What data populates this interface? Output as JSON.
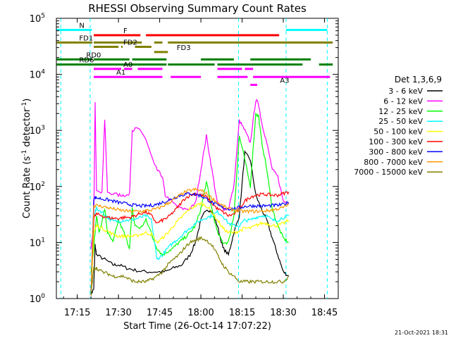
{
  "chart_data": {
    "type": "line",
    "title": "RHESSI Observing Summary Count Rates",
    "xlabel": "Start Time (26-Oct-14 17:07:22)",
    "ylabel_main": "Count Rate (s",
    "ylabel_sup": "-1",
    "ylabel_rest": " detector",
    "ylabel_sup2": "-1",
    "ylabel_end": ")",
    "x_unit": "minutes",
    "xlim": [
      1027.4,
      1130
    ],
    "ylim": [
      1,
      100000
    ],
    "yscale": "log",
    "x_ticks": [
      {
        "v": 1035,
        "label": "17:15"
      },
      {
        "v": 1050,
        "label": "17:30"
      },
      {
        "v": 1065,
        "label": "17:45"
      },
      {
        "v": 1080,
        "label": "18:00"
      },
      {
        "v": 1095,
        "label": "18:15"
      },
      {
        "v": 1110,
        "label": "18:30"
      },
      {
        "v": 1125,
        "label": "18:45"
      }
    ],
    "y_ticks": [
      {
        "v": 1,
        "base": "10",
        "exp": "0"
      },
      {
        "v": 10,
        "base": "10",
        "exp": "1"
      },
      {
        "v": 100,
        "base": "10",
        "exp": "2"
      },
      {
        "v": 1000,
        "base": "10",
        "exp": "3"
      },
      {
        "v": 10000,
        "base": "10",
        "exp": "4"
      },
      {
        "v": 100000,
        "base": "10",
        "exp": "5"
      }
    ],
    "legend_title": "Det 1,3,6,9",
    "series": [
      {
        "name": "3 - 6 keV",
        "color": "#000000",
        "x": [
          1040,
          1041,
          1041.5,
          1042,
          1045,
          1048,
          1050,
          1053,
          1056,
          1060,
          1064,
          1067,
          1070,
          1073,
          1076,
          1078,
          1080,
          1082,
          1084,
          1086,
          1088,
          1090,
          1092,
          1094,
          1096,
          1098,
          1100,
          1102,
          1104,
          1106,
          1108,
          1110,
          1112
        ],
        "y": [
          1.2,
          1.5,
          9,
          6,
          5,
          4,
          4,
          3.5,
          3.2,
          3,
          3,
          3,
          3.5,
          4,
          6,
          10,
          25,
          40,
          35,
          20,
          8,
          6,
          15,
          30,
          400,
          300,
          70,
          40,
          25,
          12,
          6,
          3,
          2.5
        ]
      },
      {
        "name": "6 - 12 keV",
        "color": "#ff00ff",
        "x": [
          1040,
          1041,
          1041.5,
          1042,
          1044,
          1045,
          1046,
          1050,
          1052,
          1054,
          1055,
          1057,
          1060,
          1063,
          1064,
          1066,
          1067,
          1070,
          1073,
          1076,
          1078,
          1080,
          1082,
          1084,
          1086,
          1088,
          1090,
          1092,
          1094,
          1096,
          1098,
          1100,
          1101,
          1102,
          1104,
          1106,
          1108,
          1110,
          1112
        ],
        "y": [
          8,
          20,
          3000,
          90,
          80,
          1600,
          80,
          70,
          70,
          70,
          1000,
          1100,
          700,
          250,
          200,
          150,
          70,
          50,
          40,
          40,
          50,
          200,
          800,
          200,
          50,
          40,
          40,
          100,
          1500,
          1000,
          600,
          3500,
          3000,
          1500,
          600,
          200,
          150,
          55,
          50
        ]
      },
      {
        "name": "12 - 25 keV",
        "color": "#00ff00",
        "x": [
          1040,
          1041,
          1042,
          1043,
          1045,
          1046,
          1048,
          1050,
          1052,
          1054,
          1055,
          1056,
          1058,
          1060,
          1062,
          1063,
          1064,
          1066,
          1068,
          1070,
          1072,
          1074,
          1076,
          1078,
          1080,
          1082,
          1084,
          1086,
          1088,
          1090,
          1092,
          1094,
          1096,
          1098,
          1100,
          1101,
          1102,
          1104,
          1106,
          1108,
          1110,
          1112
        ],
        "y": [
          3,
          8,
          30,
          15,
          40,
          15,
          10,
          25,
          15,
          8,
          40,
          20,
          18,
          25,
          15,
          10,
          8,
          6,
          7,
          8,
          10,
          12,
          15,
          20,
          40,
          120,
          40,
          15,
          10,
          10,
          30,
          800,
          300,
          100,
          2000,
          1800,
          700,
          200,
          40,
          20,
          12,
          10
        ]
      },
      {
        "name": "25 - 50 keV",
        "color": "#00ffff",
        "x": [
          1040,
          1041,
          1042,
          1044,
          1046,
          1048,
          1050,
          1052,
          1054,
          1056,
          1058,
          1060,
          1062,
          1064,
          1066,
          1068,
          1070,
          1072,
          1074,
          1076,
          1078,
          1080,
          1082,
          1084,
          1086,
          1088,
          1090,
          1092,
          1094,
          1096,
          1098,
          1100,
          1102,
          1104,
          1106,
          1108,
          1110,
          1112
        ],
        "y": [
          1.2,
          30,
          40,
          35,
          28,
          24,
          24,
          25,
          25,
          26,
          28,
          30,
          25,
          5,
          6,
          8,
          10,
          12,
          15,
          18,
          22,
          25,
          28,
          30,
          35,
          30,
          22,
          20,
          20,
          25,
          25,
          28,
          30,
          30,
          25,
          25,
          28,
          30
        ]
      },
      {
        "name": "50 - 100 keV",
        "color": "#ffff00",
        "x": [
          1040,
          1041,
          1042,
          1044,
          1046,
          1048,
          1050,
          1052,
          1054,
          1056,
          1058,
          1060,
          1062,
          1064,
          1066,
          1068,
          1070,
          1072,
          1074,
          1076,
          1078,
          1080,
          1082,
          1084,
          1086,
          1088,
          1090,
          1092,
          1094,
          1096,
          1098,
          1100,
          1102,
          1104,
          1106,
          1108,
          1110,
          1112
        ],
        "y": [
          1.2,
          15,
          20,
          18,
          16,
          14,
          13,
          13,
          13,
          13,
          14,
          15,
          14,
          10,
          12,
          15,
          20,
          25,
          32,
          40,
          45,
          50,
          45,
          35,
          25,
          18,
          15,
          15,
          16,
          18,
          18,
          20,
          22,
          22,
          20,
          20,
          22,
          25
        ]
      },
      {
        "name": "100 - 300 keV",
        "color": "#ff0000",
        "x": [
          1040,
          1041,
          1042,
          1044,
          1046,
          1048,
          1050,
          1052,
          1054,
          1056,
          1058,
          1060,
          1062,
          1064,
          1066,
          1068,
          1070,
          1072,
          1074,
          1076,
          1078,
          1080,
          1082,
          1084,
          1086,
          1088,
          1090,
          1092,
          1094,
          1096,
          1098,
          1100,
          1102,
          1104,
          1106,
          1108,
          1110,
          1112
        ],
        "y": [
          1.2,
          28,
          32,
          30,
          28,
          27,
          27,
          28,
          28,
          30,
          33,
          35,
          30,
          22,
          25,
          28,
          35,
          45,
          60,
          70,
          75,
          70,
          65,
          50,
          40,
          35,
          30,
          32,
          40,
          55,
          65,
          70,
          72,
          72,
          70,
          70,
          75,
          80
        ]
      },
      {
        "name": "300 - 800 keV",
        "color": "#0000ff",
        "x": [
          1040,
          1041,
          1042,
          1044,
          1046,
          1048,
          1050,
          1052,
          1054,
          1056,
          1058,
          1060,
          1062,
          1064,
          1066,
          1068,
          1070,
          1072,
          1074,
          1076,
          1078,
          1080,
          1082,
          1084,
          1086,
          1088,
          1090,
          1092,
          1094,
          1096,
          1098,
          1100,
          1102,
          1104,
          1106,
          1108,
          1110,
          1112
        ],
        "y": [
          1.2,
          62,
          63,
          60,
          58,
          55,
          52,
          50,
          48,
          46,
          45,
          45,
          46,
          48,
          52,
          56,
          62,
          68,
          72,
          75,
          72,
          68,
          60,
          52,
          46,
          42,
          40,
          40,
          42,
          44,
          45,
          45,
          45,
          45,
          46,
          46,
          48,
          52
        ]
      },
      {
        "name": "800 - 7000 keV",
        "color": "#ff9900",
        "x": [
          1040,
          1041,
          1042,
          1044,
          1046,
          1048,
          1050,
          1052,
          1054,
          1056,
          1058,
          1060,
          1062,
          1064,
          1066,
          1068,
          1070,
          1072,
          1074,
          1076,
          1078,
          1080,
          1082,
          1084,
          1086,
          1088,
          1090,
          1092,
          1094,
          1096,
          1098,
          1100,
          1102,
          1104,
          1106,
          1108,
          1110,
          1112
        ],
        "y": [
          1.2,
          45,
          46,
          44,
          42,
          40,
          38,
          37,
          36,
          36,
          36,
          37,
          38,
          40,
          44,
          50,
          58,
          68,
          78,
          85,
          88,
          85,
          75,
          62,
          52,
          45,
          40,
          38,
          36,
          36,
          36,
          36,
          36,
          37,
          38,
          40,
          42,
          48
        ]
      },
      {
        "name": "7000 - 15000 keV",
        "color": "#808000",
        "x": [
          1040,
          1041,
          1042,
          1044,
          1046,
          1048,
          1050,
          1052,
          1054,
          1056,
          1058,
          1060,
          1062,
          1064,
          1066,
          1068,
          1070,
          1072,
          1074,
          1076,
          1078,
          1080,
          1082,
          1084,
          1086,
          1088,
          1090,
          1092,
          1094,
          1096,
          1098,
          1100,
          1102,
          1104,
          1106,
          1108,
          1110,
          1112
        ],
        "y": [
          1.2,
          3.5,
          3.5,
          3,
          2.8,
          2.5,
          2.5,
          2.5,
          2.2,
          2,
          2,
          2,
          2.2,
          2.5,
          3,
          4,
          5,
          6,
          8,
          10,
          11,
          12,
          11,
          9,
          6,
          4,
          3,
          2.5,
          2,
          2,
          2,
          2,
          2,
          2,
          2,
          2,
          2,
          2.5
        ]
      }
    ],
    "bars": [
      {
        "label": "N",
        "color": "#00ffff",
        "y": 62000,
        "segments": [
          [
            1027.5,
            1040.3
          ],
          [
            1111,
            1126
          ]
        ]
      },
      {
        "label": "F",
        "color": "#ff0000",
        "y": 50000,
        "segments": [
          [
            1041,
            1058
          ],
          [
            1060,
            1108.5
          ]
        ]
      },
      {
        "label": "FD1",
        "color": "#808000",
        "y": 37000,
        "segments": [
          [
            1027.5,
            1040.5
          ],
          [
            1041,
            1058.5
          ],
          [
            1063,
            1066
          ],
          [
            1068,
            1128
          ]
        ]
      },
      {
        "label": "FD2",
        "color": "#808000",
        "y": 31000,
        "segments": [
          [
            1041,
            1050
          ],
          [
            1051,
            1051.5
          ],
          [
            1056,
            1062
          ]
        ]
      },
      {
        "label": "FD3",
        "color": "#808000",
        "y": 25000,
        "segments": [
          [
            1063,
            1068
          ]
        ]
      },
      {
        "label": "RD0",
        "color": "#008000",
        "y": 18500,
        "segments": [
          [
            1027.5,
            1040.5
          ],
          [
            1041,
            1054
          ],
          [
            1055,
            1067.5
          ],
          [
            1080,
            1092
          ],
          [
            1098,
            1120
          ]
        ]
      },
      {
        "label": "RD6",
        "color": "#008000",
        "y": 15000,
        "segments": [
          [
            1027.5,
            1041
          ],
          [
            1041,
            1067.5
          ],
          [
            1068,
            1085
          ],
          [
            1086,
            1117
          ],
          [
            1123,
            1128
          ]
        ]
      },
      {
        "label": "A0",
        "color": "#ff00ff",
        "y": 12500,
        "segments": [
          [
            1041,
            1051
          ],
          [
            1052,
            1055
          ],
          [
            1057,
            1066
          ],
          [
            1086,
            1095
          ],
          [
            1096,
            1099
          ]
        ]
      },
      {
        "label": "A1",
        "color": "#ff00ff",
        "y": 9000,
        "segments": [
          [
            1041,
            1066
          ],
          [
            1069,
            1080
          ],
          [
            1086,
            1097
          ],
          [
            1099,
            1127
          ]
        ]
      },
      {
        "label": "A3",
        "color": "#ff00ff",
        "y": 6500,
        "segments": [
          [
            1098,
            1100.5
          ]
        ]
      }
    ],
    "vlines": [
      {
        "x": 1029,
        "color": "#00ffff"
      },
      {
        "x": 1039.7,
        "color": "#00ffff"
      },
      {
        "x": 1093.7,
        "color": "#00ffff"
      },
      {
        "x": 1111,
        "color": "#00ffff"
      },
      {
        "x": 1126,
        "color": "#00ffff"
      }
    ]
  },
  "footer": {
    "timestamp": "21-Oct-2021 18:31"
  }
}
